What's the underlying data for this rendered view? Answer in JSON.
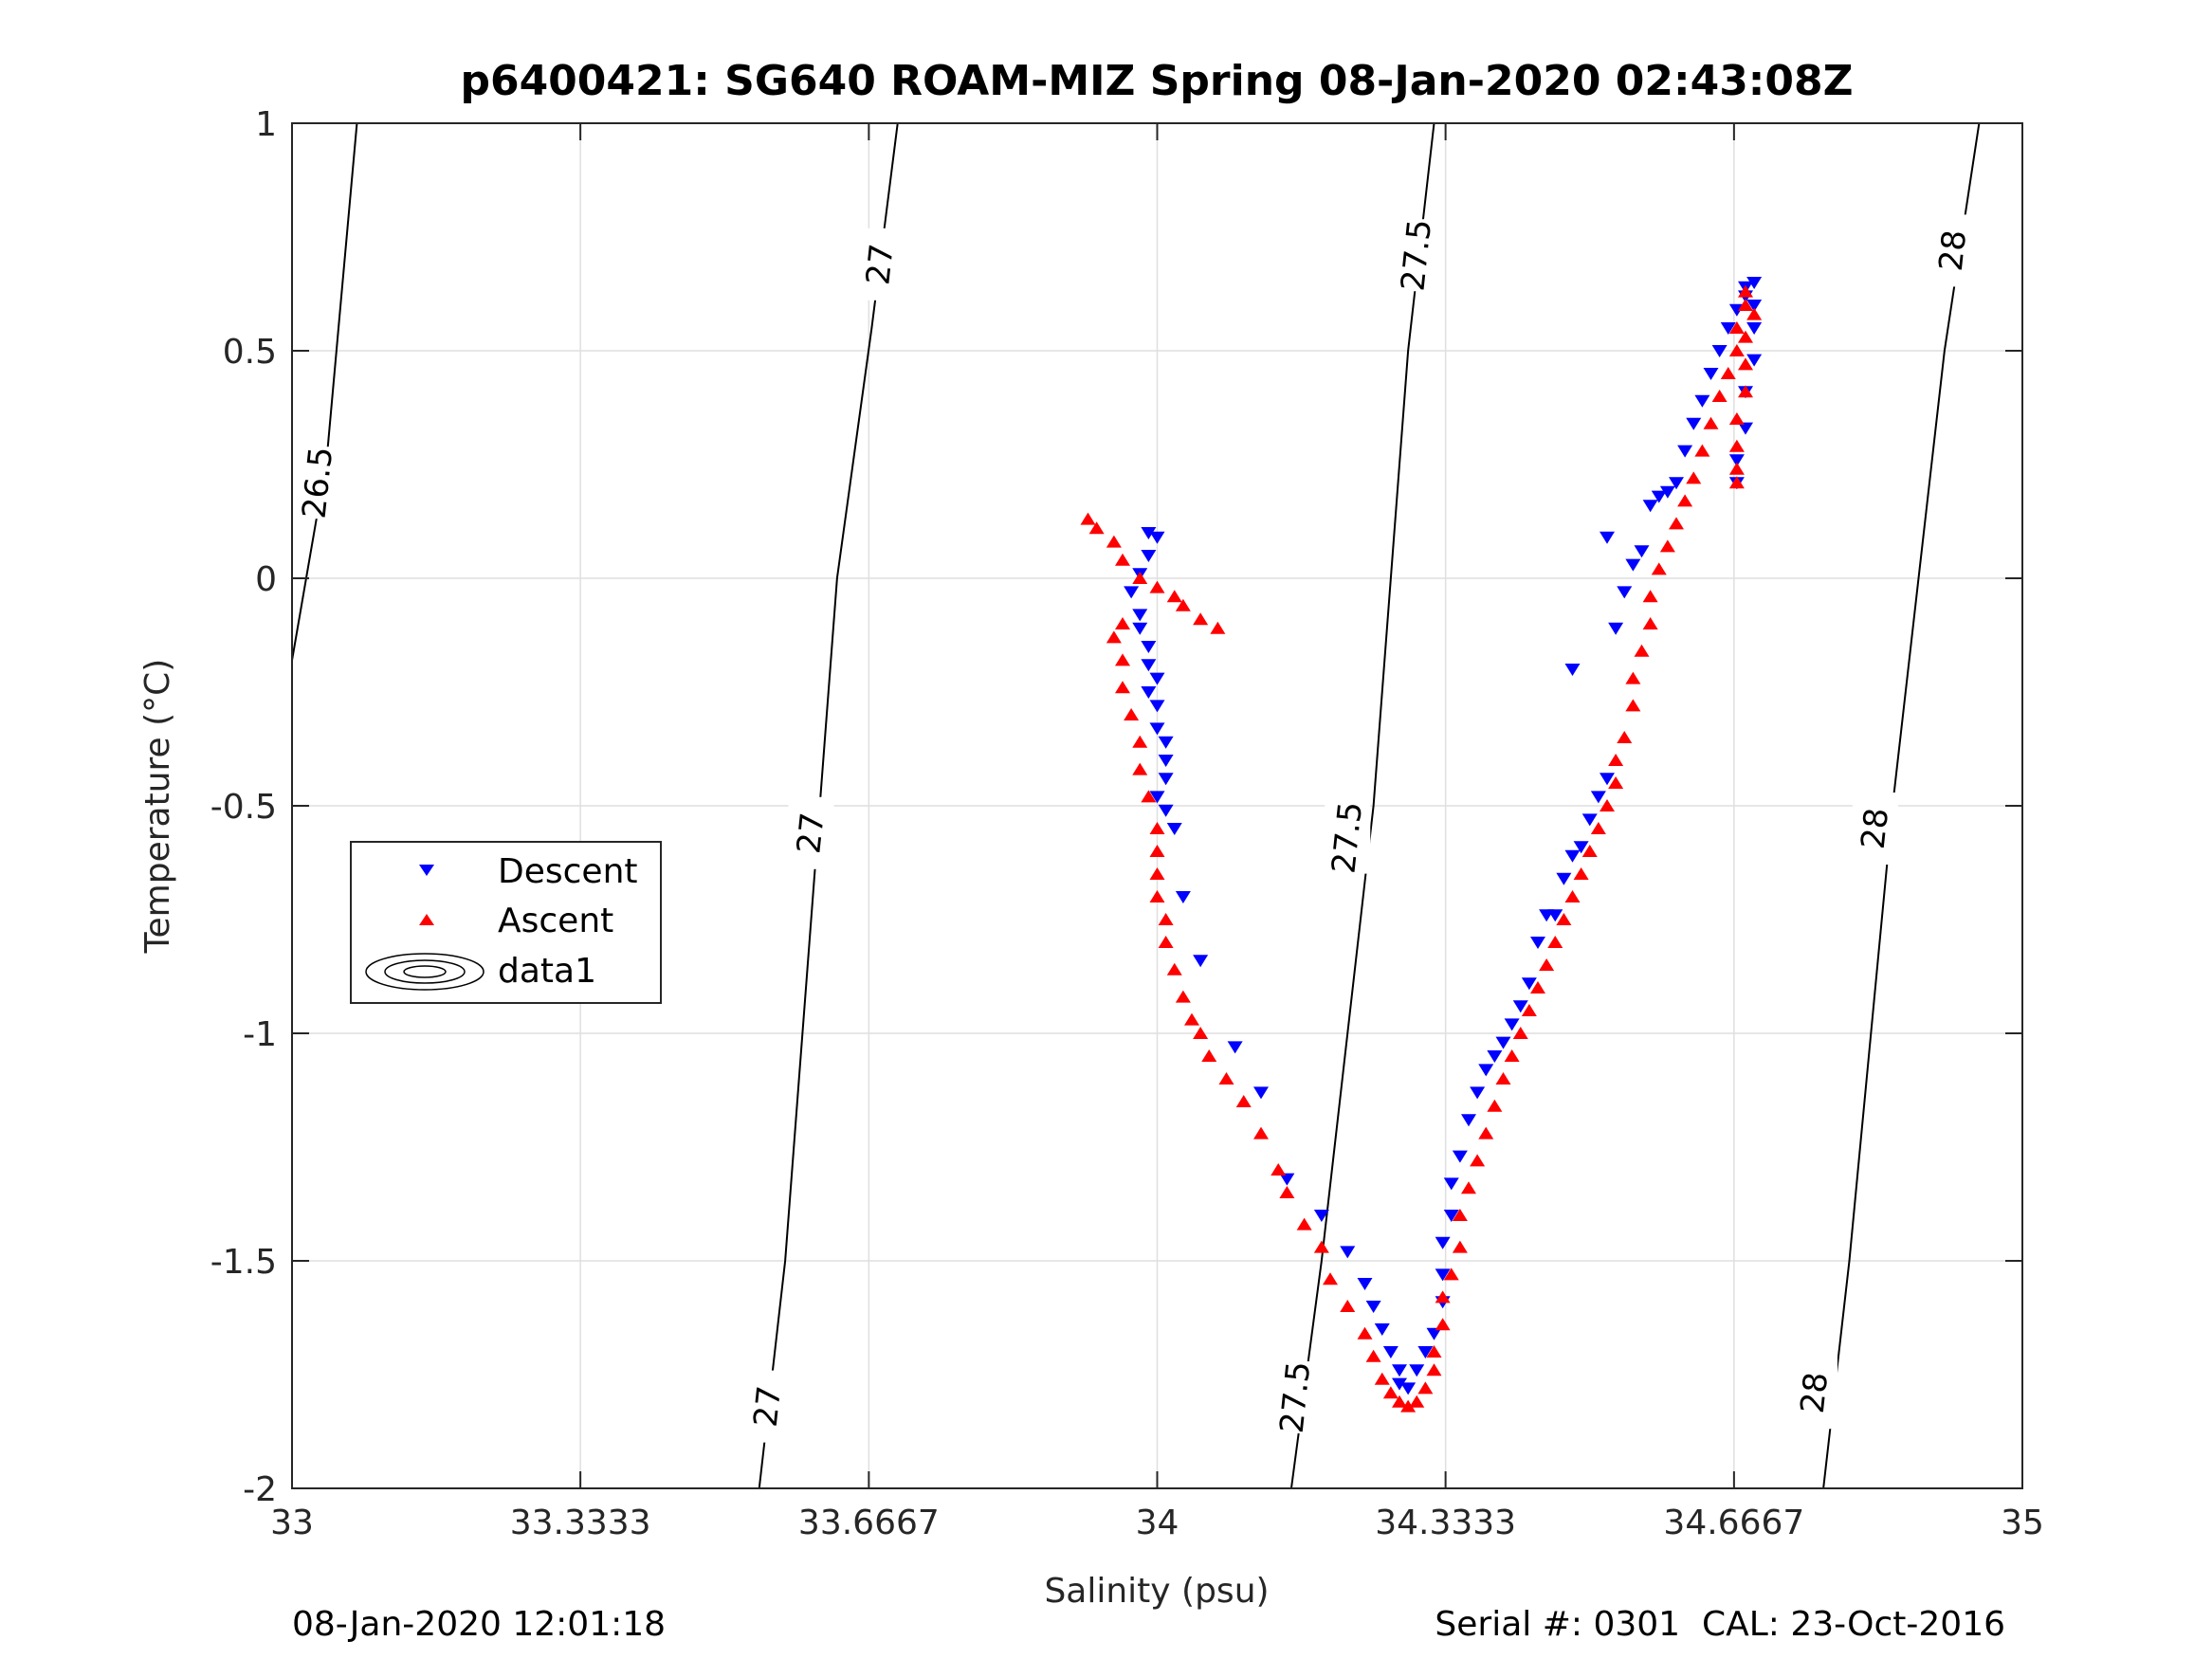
{
  "chart_data": {
    "type": "scatter",
    "title": "p6400421: SG640 ROAM-MIZ Spring 08-Jan-2020 02:43:08Z",
    "xlabel": "Salinity (psu)",
    "ylabel": "Temperature (°C)",
    "xlim": [
      33,
      35
    ],
    "ylim": [
      -2,
      1
    ],
    "xtick_labels": [
      "33",
      "33.3333",
      "33.6667",
      "34",
      "34.3333",
      "34.6667",
      "35"
    ],
    "ytick_labels": [
      "-2",
      "-1.5",
      "-1",
      "-0.5",
      "0",
      "0.5",
      "1"
    ],
    "grid": true,
    "legend_position": "middle-left",
    "legend": [
      "Descent",
      "Ascent",
      "data1"
    ],
    "series": [
      {
        "name": "Descent",
        "marker": "triangle-down",
        "color": "#0000ff",
        "points": [
          [
            33.99,
            0.1
          ],
          [
            34.0,
            0.09
          ],
          [
            33.99,
            0.05
          ],
          [
            33.98,
            0.01
          ],
          [
            33.97,
            -0.03
          ],
          [
            33.98,
            -0.08
          ],
          [
            33.98,
            -0.11
          ],
          [
            33.99,
            -0.15
          ],
          [
            33.99,
            -0.19
          ],
          [
            34.0,
            -0.22
          ],
          [
            33.99,
            -0.25
          ],
          [
            34.0,
            -0.28
          ],
          [
            34.0,
            -0.33
          ],
          [
            34.01,
            -0.36
          ],
          [
            34.01,
            -0.4
          ],
          [
            34.01,
            -0.44
          ],
          [
            34.0,
            -0.48
          ],
          [
            34.01,
            -0.51
          ],
          [
            34.02,
            -0.55
          ],
          [
            34.03,
            -0.7
          ],
          [
            34.05,
            -0.84
          ],
          [
            34.09,
            -1.03
          ],
          [
            34.12,
            -1.13
          ],
          [
            34.15,
            -1.32
          ],
          [
            34.19,
            -1.4
          ],
          [
            34.22,
            -1.48
          ],
          [
            34.24,
            -1.55
          ],
          [
            34.25,
            -1.6
          ],
          [
            34.26,
            -1.65
          ],
          [
            34.27,
            -1.7
          ],
          [
            34.28,
            -1.74
          ],
          [
            34.28,
            -1.77
          ],
          [
            34.29,
            -1.78
          ],
          [
            34.3,
            -1.74
          ],
          [
            34.31,
            -1.7
          ],
          [
            34.32,
            -1.66
          ],
          [
            34.33,
            -1.59
          ],
          [
            34.33,
            -1.53
          ],
          [
            34.33,
            -1.46
          ],
          [
            34.34,
            -1.4
          ],
          [
            34.34,
            -1.33
          ],
          [
            34.35,
            -1.27
          ],
          [
            34.36,
            -1.19
          ],
          [
            34.37,
            -1.13
          ],
          [
            34.38,
            -1.08
          ],
          [
            34.39,
            -1.05
          ],
          [
            34.4,
            -1.02
          ],
          [
            34.41,
            -0.98
          ],
          [
            34.42,
            -0.94
          ],
          [
            34.43,
            -0.89
          ],
          [
            34.44,
            -0.8
          ],
          [
            34.45,
            -0.74
          ],
          [
            34.46,
            -0.74
          ],
          [
            34.47,
            -0.66
          ],
          [
            34.48,
            -0.61
          ],
          [
            34.49,
            -0.59
          ],
          [
            34.5,
            -0.53
          ],
          [
            34.51,
            -0.48
          ],
          [
            34.52,
            -0.44
          ],
          [
            34.48,
            -0.2
          ],
          [
            34.53,
            -0.11
          ],
          [
            34.54,
            -0.03
          ],
          [
            34.52,
            0.09
          ],
          [
            34.55,
            0.03
          ],
          [
            34.56,
            0.06
          ],
          [
            34.57,
            0.16
          ],
          [
            34.58,
            0.18
          ],
          [
            34.59,
            0.19
          ],
          [
            34.6,
            0.21
          ],
          [
            34.61,
            0.28
          ],
          [
            34.62,
            0.34
          ],
          [
            34.63,
            0.39
          ],
          [
            34.64,
            0.45
          ],
          [
            34.65,
            0.5
          ],
          [
            34.66,
            0.55
          ],
          [
            34.67,
            0.59
          ],
          [
            34.68,
            0.62
          ],
          [
            34.68,
            0.64
          ],
          [
            34.69,
            0.65
          ],
          [
            34.69,
            0.6
          ],
          [
            34.69,
            0.55
          ],
          [
            34.69,
            0.48
          ],
          [
            34.68,
            0.41
          ],
          [
            34.68,
            0.33
          ],
          [
            34.67,
            0.26
          ],
          [
            34.67,
            0.21
          ]
        ]
      },
      {
        "name": "Ascent",
        "marker": "triangle-up",
        "color": "#ff0000",
        "points": [
          [
            34.07,
            -0.11
          ],
          [
            34.05,
            -0.09
          ],
          [
            34.03,
            -0.06
          ],
          [
            34.02,
            -0.04
          ],
          [
            34.0,
            -0.02
          ],
          [
            33.98,
            0.0
          ],
          [
            33.96,
            0.04
          ],
          [
            33.95,
            0.08
          ],
          [
            33.93,
            0.11
          ],
          [
            33.92,
            0.13
          ],
          [
            33.96,
            -0.1
          ],
          [
            33.95,
            -0.13
          ],
          [
            33.96,
            -0.18
          ],
          [
            33.96,
            -0.24
          ],
          [
            33.97,
            -0.3
          ],
          [
            33.98,
            -0.36
          ],
          [
            33.98,
            -0.42
          ],
          [
            33.99,
            -0.48
          ],
          [
            34.0,
            -0.55
          ],
          [
            34.0,
            -0.6
          ],
          [
            34.0,
            -0.65
          ],
          [
            34.0,
            -0.7
          ],
          [
            34.01,
            -0.75
          ],
          [
            34.01,
            -0.8
          ],
          [
            34.02,
            -0.86
          ],
          [
            34.03,
            -0.92
          ],
          [
            34.04,
            -0.97
          ],
          [
            34.05,
            -1.0
          ],
          [
            34.06,
            -1.05
          ],
          [
            34.08,
            -1.1
          ],
          [
            34.1,
            -1.15
          ],
          [
            34.12,
            -1.22
          ],
          [
            34.14,
            -1.3
          ],
          [
            34.15,
            -1.35
          ],
          [
            34.17,
            -1.42
          ],
          [
            34.19,
            -1.47
          ],
          [
            34.2,
            -1.54
          ],
          [
            34.22,
            -1.6
          ],
          [
            34.24,
            -1.66
          ],
          [
            34.25,
            -1.71
          ],
          [
            34.26,
            -1.76
          ],
          [
            34.27,
            -1.79
          ],
          [
            34.28,
            -1.81
          ],
          [
            34.29,
            -1.82
          ],
          [
            34.3,
            -1.81
          ],
          [
            34.31,
            -1.78
          ],
          [
            34.32,
            -1.74
          ],
          [
            34.32,
            -1.7
          ],
          [
            34.33,
            -1.64
          ],
          [
            34.33,
            -1.58
          ],
          [
            34.34,
            -1.53
          ],
          [
            34.35,
            -1.47
          ],
          [
            34.35,
            -1.4
          ],
          [
            34.36,
            -1.34
          ],
          [
            34.37,
            -1.28
          ],
          [
            34.38,
            -1.22
          ],
          [
            34.39,
            -1.16
          ],
          [
            34.4,
            -1.1
          ],
          [
            34.41,
            -1.05
          ],
          [
            34.42,
            -1.0
          ],
          [
            34.43,
            -0.95
          ],
          [
            34.44,
            -0.9
          ],
          [
            34.45,
            -0.85
          ],
          [
            34.46,
            -0.8
          ],
          [
            34.47,
            -0.75
          ],
          [
            34.48,
            -0.7
          ],
          [
            34.49,
            -0.65
          ],
          [
            34.5,
            -0.6
          ],
          [
            34.51,
            -0.55
          ],
          [
            34.52,
            -0.5
          ],
          [
            34.53,
            -0.45
          ],
          [
            34.53,
            -0.4
          ],
          [
            34.54,
            -0.35
          ],
          [
            34.55,
            -0.28
          ],
          [
            34.55,
            -0.22
          ],
          [
            34.56,
            -0.16
          ],
          [
            34.57,
            -0.1
          ],
          [
            34.57,
            -0.04
          ],
          [
            34.58,
            0.02
          ],
          [
            34.59,
            0.07
          ],
          [
            34.6,
            0.12
          ],
          [
            34.61,
            0.17
          ],
          [
            34.62,
            0.22
          ],
          [
            34.63,
            0.28
          ],
          [
            34.64,
            0.34
          ],
          [
            34.65,
            0.4
          ],
          [
            34.66,
            0.45
          ],
          [
            34.67,
            0.5
          ],
          [
            34.67,
            0.55
          ],
          [
            34.68,
            0.6
          ],
          [
            34.68,
            0.63
          ],
          [
            34.69,
            0.58
          ],
          [
            34.68,
            0.53
          ],
          [
            34.68,
            0.47
          ],
          [
            34.68,
            0.41
          ],
          [
            34.67,
            0.35
          ],
          [
            34.67,
            0.29
          ],
          [
            34.67,
            0.24
          ],
          [
            34.67,
            0.21
          ]
        ]
      }
    ],
    "contours": [
      {
        "label": "26.5",
        "labels_at": [
          [
            33.03,
            0.21
          ]
        ],
        "points": [
          [
            33.0,
            -0.18
          ],
          [
            33.04,
            0.26
          ],
          [
            33.075,
            1.0
          ]
        ]
      },
      {
        "label": "27",
        "labels_at": [
          [
            33.55,
            -1.82
          ],
          [
            33.6,
            -0.56
          ],
          [
            33.68,
            0.69
          ]
        ],
        "points": [
          [
            33.54,
            -2.0
          ],
          [
            33.57,
            -1.5
          ],
          [
            33.61,
            -0.5
          ],
          [
            33.63,
            0.0
          ],
          [
            33.67,
            0.55
          ],
          [
            33.7,
            1.0
          ]
        ]
      },
      {
        "label": "27.5",
        "labels_at": [
          [
            34.16,
            -1.8
          ],
          [
            34.22,
            -0.57
          ],
          [
            34.3,
            0.71
          ]
        ],
        "points": [
          [
            34.155,
            -2.0
          ],
          [
            34.19,
            -1.5
          ],
          [
            34.25,
            -0.5
          ],
          [
            34.27,
            0.0
          ],
          [
            34.29,
            0.5
          ],
          [
            34.32,
            1.0
          ]
        ]
      },
      {
        "label": "28",
        "labels_at": [
          [
            34.76,
            -1.79
          ],
          [
            34.83,
            -0.55
          ],
          [
            34.92,
            0.72
          ]
        ],
        "points": [
          [
            34.77,
            -2.0
          ],
          [
            34.8,
            -1.5
          ],
          [
            34.85,
            -0.5
          ],
          [
            34.88,
            0.0
          ],
          [
            34.91,
            0.5
          ],
          [
            34.95,
            1.0
          ]
        ]
      }
    ]
  },
  "footer": {
    "timestamp": "08-Jan-2020 12:01:18",
    "serial_cal": "Serial #: 0301  CAL: 23-Oct-2016"
  }
}
